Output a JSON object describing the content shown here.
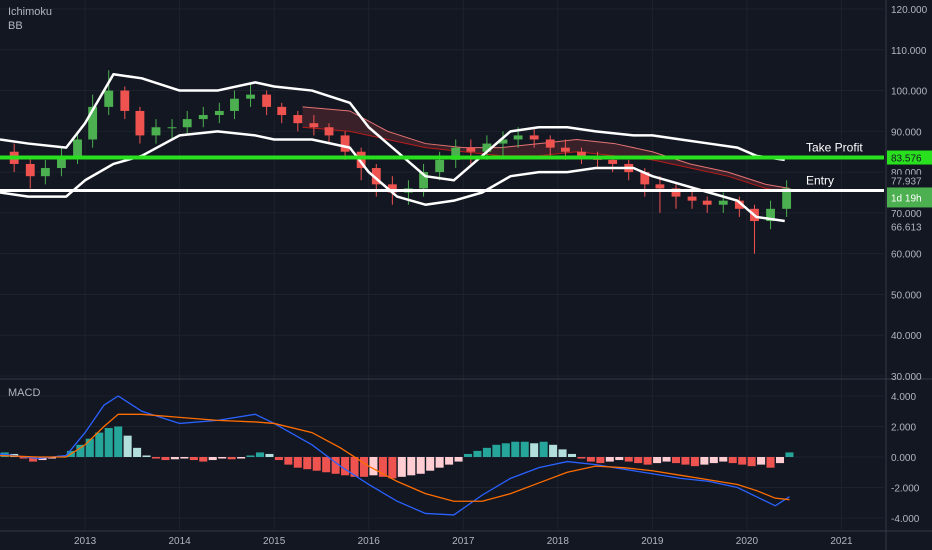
{
  "indicators": {
    "top": [
      "Ichimoku",
      "BB"
    ],
    "bottom": "MACD"
  },
  "colors": {
    "background": "#131722",
    "grid": "#1e222d",
    "axis_text": "#b2b5be",
    "up": "#26a69a",
    "up_alt": "#4caf50",
    "down": "#ef5350",
    "bollinger": "#ffffff",
    "take_profit": "#29e01f",
    "entry": "#ffffff",
    "macd_line": "#2962ff",
    "signal_line": "#ff6d00",
    "hist_pos_strong": "#26a69a",
    "hist_pos_weak": "#b2dfdb",
    "hist_neg_strong": "#ef5350",
    "hist_neg_weak": "#ffcdd2"
  },
  "annotations": {
    "take_profit": {
      "label": "Take Profit",
      "value": 83.576,
      "badge": "83.576"
    },
    "entry": {
      "label": "Entry",
      "value": 75.5,
      "badge": "1d 19h"
    }
  },
  "axis_badges": [
    {
      "text": "77.937",
      "value": 77.937,
      "color": "#b2b5be"
    },
    {
      "text": "66.613",
      "value": 66.613,
      "color": "#b2b5be"
    }
  ],
  "chart_data": [
    {
      "type": "line",
      "ylim": [
        30,
        120
      ],
      "ytick_labels": [
        "30.000",
        "40.000",
        "50.000",
        "60.000",
        "70.000",
        "80.000",
        "90.000",
        "100.000",
        "110.000",
        "120.000"
      ],
      "ytick_values": [
        30,
        40,
        50,
        60,
        70,
        80,
        90,
        100,
        110,
        120
      ],
      "xtick_labels": [
        "2013",
        "2014",
        "2015",
        "2016",
        "2017",
        "2018",
        "2019",
        "2020",
        "2021"
      ],
      "xtick_values": [
        2013,
        2014,
        2015,
        2016,
        2017,
        2018,
        2019,
        2020,
        2021
      ],
      "xlim": [
        2012.1,
        2021.45
      ],
      "candles": {
        "t": [
          2012.25,
          2012.42,
          2012.58,
          2012.75,
          2012.92,
          2013.08,
          2013.25,
          2013.42,
          2013.58,
          2013.75,
          2013.92,
          2014.08,
          2014.25,
          2014.42,
          2014.58,
          2014.75,
          2014.92,
          2015.08,
          2015.25,
          2015.42,
          2015.58,
          2015.75,
          2015.92,
          2016.08,
          2016.25,
          2016.42,
          2016.58,
          2016.75,
          2016.92,
          2017.08,
          2017.25,
          2017.42,
          2017.58,
          2017.75,
          2017.92,
          2018.08,
          2018.25,
          2018.42,
          2018.58,
          2018.75,
          2018.92,
          2019.08,
          2019.25,
          2019.42,
          2019.58,
          2019.75,
          2019.92,
          2020.08,
          2020.25,
          2020.42
        ],
        "open": [
          85,
          82,
          79,
          81,
          84,
          88,
          96,
          100,
          95,
          89,
          91,
          91,
          93,
          94,
          95,
          98,
          99,
          96,
          94,
          92,
          91,
          89,
          85,
          81,
          77,
          75,
          76,
          80,
          83,
          86,
          85,
          87,
          88,
          89,
          88,
          86,
          85,
          84,
          83,
          82,
          80,
          77,
          76,
          74,
          73,
          72,
          73,
          71,
          68,
          71
        ],
        "close": [
          82,
          79,
          81,
          84,
          88,
          96,
          100,
          95,
          89,
          91,
          91,
          93,
          94,
          95,
          98,
          99,
          96,
          94,
          92,
          91,
          89,
          85,
          81,
          77,
          75,
          76,
          80,
          83,
          86,
          85,
          87,
          88,
          89,
          88,
          86,
          85,
          84,
          83,
          82,
          80,
          77,
          76,
          74,
          73,
          72,
          73,
          71,
          68,
          71,
          76
        ],
        "high": [
          87,
          84,
          83,
          86,
          90,
          99,
          105,
          101,
          96,
          93,
          93,
          95,
          96,
          97,
          100,
          102,
          100,
          97,
          95,
          94,
          92,
          90,
          86,
          82,
          79,
          78,
          82,
          85,
          88,
          88,
          89,
          90,
          91,
          91,
          89,
          88,
          86,
          85,
          84,
          83,
          81,
          79,
          77,
          76,
          74,
          75,
          74,
          72,
          73,
          78
        ],
        "low": [
          80,
          76,
          77,
          79,
          82,
          86,
          94,
          93,
          87,
          87,
          88,
          89,
          91,
          92,
          93,
          96,
          94,
          92,
          90,
          89,
          87,
          83,
          78,
          74,
          72,
          72,
          74,
          78,
          81,
          82,
          83,
          84,
          86,
          86,
          84,
          83,
          82,
          81,
          80,
          78,
          74,
          70,
          71,
          71,
          70,
          70,
          69,
          60,
          66,
          69
        ]
      },
      "bollinger": {
        "t": [
          2012.1,
          2012.4,
          2012.8,
          2013.0,
          2013.3,
          2013.6,
          2014.0,
          2014.4,
          2014.8,
          2015.0,
          2015.4,
          2015.8,
          2016.0,
          2016.3,
          2016.6,
          2016.9,
          2017.2,
          2017.5,
          2017.8,
          2018.1,
          2018.4,
          2018.8,
          2019.0,
          2019.3,
          2019.6,
          2019.9,
          2020.1,
          2020.4
        ],
        "upper": [
          88,
          87,
          86,
          92,
          104,
          103,
          100,
          100,
          102,
          101,
          100,
          97,
          91,
          85,
          79,
          78,
          84,
          90,
          91,
          91,
          90,
          89,
          89,
          88,
          87,
          86,
          84,
          83
        ],
        "lower": [
          75,
          74,
          74,
          78,
          82,
          84,
          89,
          90,
          89,
          88,
          88,
          86,
          80,
          74,
          72,
          73,
          75,
          79,
          80,
          80,
          81,
          81,
          79,
          77,
          75,
          73,
          69,
          68
        ]
      },
      "ichimoku_cloud": {
        "t": [
          2015.3,
          2015.8,
          2016.2,
          2016.6,
          2017.0,
          2017.4,
          2017.8,
          2018.2,
          2018.6,
          2019.0,
          2019.4,
          2019.8,
          2020.2,
          2020.45
        ],
        "span_a": [
          96,
          95,
          90,
          87,
          86,
          86,
          87,
          88,
          87,
          85,
          82,
          80,
          77,
          76
        ],
        "span_b": [
          91,
          90,
          88,
          86,
          85,
          84,
          84,
          85,
          84,
          83,
          81,
          79,
          76,
          75
        ]
      },
      "take_profit": 83.576,
      "entry": 75.5
    },
    {
      "type": "bar",
      "ylim": [
        -4.5,
        4.5
      ],
      "ytick_labels": [
        "-4.000",
        "-2.000",
        "0.000",
        "2.000",
        "4.000"
      ],
      "ytick_values": [
        -4,
        -2,
        0,
        2,
        4
      ],
      "macd": {
        "t": [
          2012.1,
          2012.5,
          2012.8,
          2013.0,
          2013.2,
          2013.35,
          2013.6,
          2014.0,
          2014.4,
          2014.8,
          2015.0,
          2015.4,
          2015.7,
          2016.0,
          2016.3,
          2016.6,
          2016.9,
          2017.2,
          2017.5,
          2017.8,
          2018.1,
          2018.4,
          2018.7,
          2019.0,
          2019.3,
          2019.6,
          2019.9,
          2020.1,
          2020.3,
          2020.45
        ],
        "macd": [
          0.2,
          -0.1,
          0.1,
          1.6,
          3.4,
          4.0,
          3.0,
          2.2,
          2.4,
          2.8,
          2.2,
          0.8,
          -0.6,
          -1.8,
          -2.9,
          -3.7,
          -3.8,
          -2.5,
          -1.4,
          -0.7,
          -0.3,
          -0.5,
          -0.8,
          -1.1,
          -1.4,
          -1.6,
          -2.0,
          -2.6,
          -3.2,
          -2.6
        ],
        "signal": [
          0.1,
          0.0,
          0.0,
          0.8,
          2.0,
          2.8,
          2.8,
          2.6,
          2.4,
          2.3,
          2.2,
          1.6,
          0.6,
          -0.6,
          -1.6,
          -2.4,
          -2.9,
          -2.9,
          -2.4,
          -1.7,
          -1.0,
          -0.6,
          -0.7,
          -0.9,
          -1.2,
          -1.5,
          -1.8,
          -2.2,
          -2.7,
          -2.8
        ]
      },
      "histogram": {
        "t": [
          2012.15,
          2012.25,
          2012.35,
          2012.45,
          2012.55,
          2012.65,
          2012.75,
          2012.85,
          2012.95,
          2013.05,
          2013.15,
          2013.25,
          2013.35,
          2013.45,
          2013.55,
          2013.65,
          2013.75,
          2013.85,
          2013.95,
          2014.05,
          2014.15,
          2014.25,
          2014.35,
          2014.45,
          2014.55,
          2014.65,
          2014.75,
          2014.85,
          2014.95,
          2015.05,
          2015.15,
          2015.25,
          2015.35,
          2015.45,
          2015.55,
          2015.65,
          2015.75,
          2015.85,
          2015.95,
          2016.05,
          2016.15,
          2016.25,
          2016.35,
          2016.45,
          2016.55,
          2016.65,
          2016.75,
          2016.85,
          2016.95,
          2017.05,
          2017.15,
          2017.25,
          2017.35,
          2017.45,
          2017.55,
          2017.65,
          2017.75,
          2017.85,
          2017.95,
          2018.05,
          2018.15,
          2018.25,
          2018.35,
          2018.45,
          2018.55,
          2018.65,
          2018.75,
          2018.85,
          2018.95,
          2019.05,
          2019.15,
          2019.25,
          2019.35,
          2019.45,
          2019.55,
          2019.65,
          2019.75,
          2019.85,
          2019.95,
          2020.05,
          2020.15,
          2020.25,
          2020.35,
          2020.45
        ],
        "values": [
          0.3,
          0.2,
          -0.1,
          -0.3,
          -0.2,
          -0.1,
          0.1,
          0.4,
          0.8,
          1.2,
          1.6,
          1.9,
          2.0,
          1.4,
          0.6,
          0.1,
          -0.1,
          -0.2,
          -0.15,
          -0.1,
          -0.2,
          -0.3,
          -0.2,
          -0.1,
          -0.15,
          -0.1,
          0.1,
          0.3,
          0.2,
          -0.2,
          -0.5,
          -0.7,
          -0.8,
          -0.9,
          -1.0,
          -1.1,
          -1.2,
          -1.3,
          -1.3,
          -1.2,
          -1.3,
          -1.4,
          -1.3,
          -1.2,
          -1.1,
          -0.9,
          -0.7,
          -0.5,
          -0.3,
          0.2,
          0.4,
          0.6,
          0.8,
          0.9,
          1.0,
          1.0,
          0.9,
          1.0,
          0.8,
          0.5,
          0.2,
          -0.1,
          -0.3,
          -0.4,
          -0.3,
          -0.2,
          -0.3,
          -0.4,
          -0.5,
          -0.4,
          -0.3,
          -0.4,
          -0.5,
          -0.6,
          -0.5,
          -0.4,
          -0.3,
          -0.4,
          -0.5,
          -0.6,
          -0.5,
          -0.7,
          -0.4,
          0.3
        ]
      }
    }
  ]
}
